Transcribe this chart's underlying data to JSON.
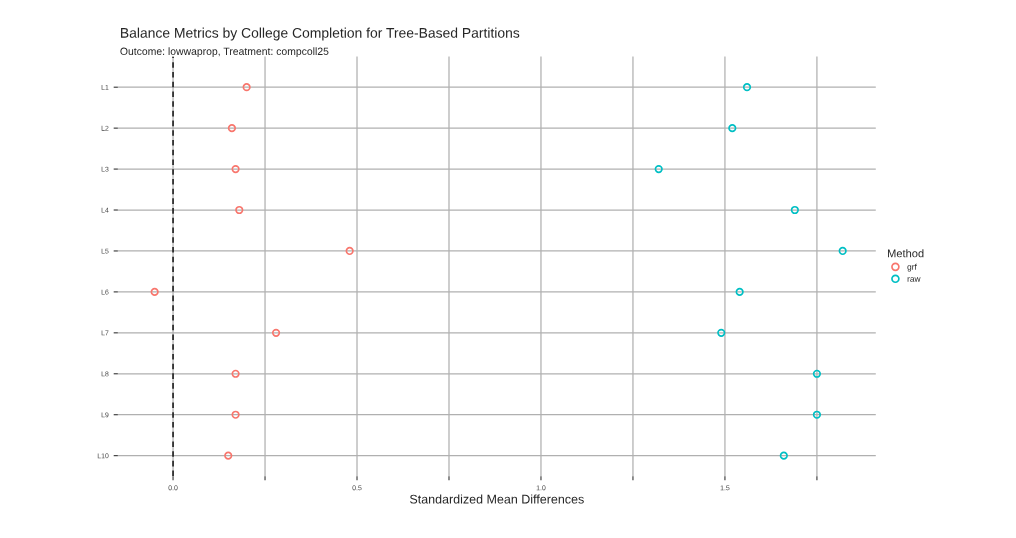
{
  "chart_data": {
    "type": "scatter",
    "orientation": "horizontal",
    "title": "Balance Metrics by College Completion for Tree-Based Partitions",
    "subtitle": "Outcome: lowwaprop, Treatment: compcoll25",
    "xlabel": "Standardized Mean Differences",
    "legend_title": "Method",
    "categories": [
      "L1",
      "L2",
      "L3",
      "L4",
      "L5",
      "L6",
      "L7",
      "L8",
      "L9",
      "L10"
    ],
    "series": [
      {
        "name": "grf",
        "color": "#f8766d",
        "values": [
          0.2,
          0.16,
          0.17,
          0.18,
          0.48,
          -0.05,
          0.28,
          0.17,
          0.17,
          0.15
        ]
      },
      {
        "name": "raw",
        "color": "#00bfc4",
        "values": [
          1.56,
          1.52,
          1.32,
          1.69,
          1.82,
          1.54,
          1.49,
          1.75,
          1.75,
          1.66
        ]
      }
    ],
    "xlim": [
      -0.15,
      1.91
    ],
    "xticks": [
      {
        "value": 0.0,
        "label": "0.0"
      },
      {
        "value": 0.25,
        "label": null
      },
      0.5,
      {
        "value": 0.75,
        "label": null
      },
      {
        "value": 1.0,
        "label": "1.0"
      },
      {
        "value": 1.25,
        "label": null
      },
      1.5,
      {
        "value": 1.75,
        "label": null
      }
    ],
    "ref_lines": [
      {
        "axis": "x",
        "value": 0,
        "color": "#000000",
        "line_style": "dashed"
      }
    ],
    "grid": true,
    "legend": "right",
    "marker": "circle"
  }
}
